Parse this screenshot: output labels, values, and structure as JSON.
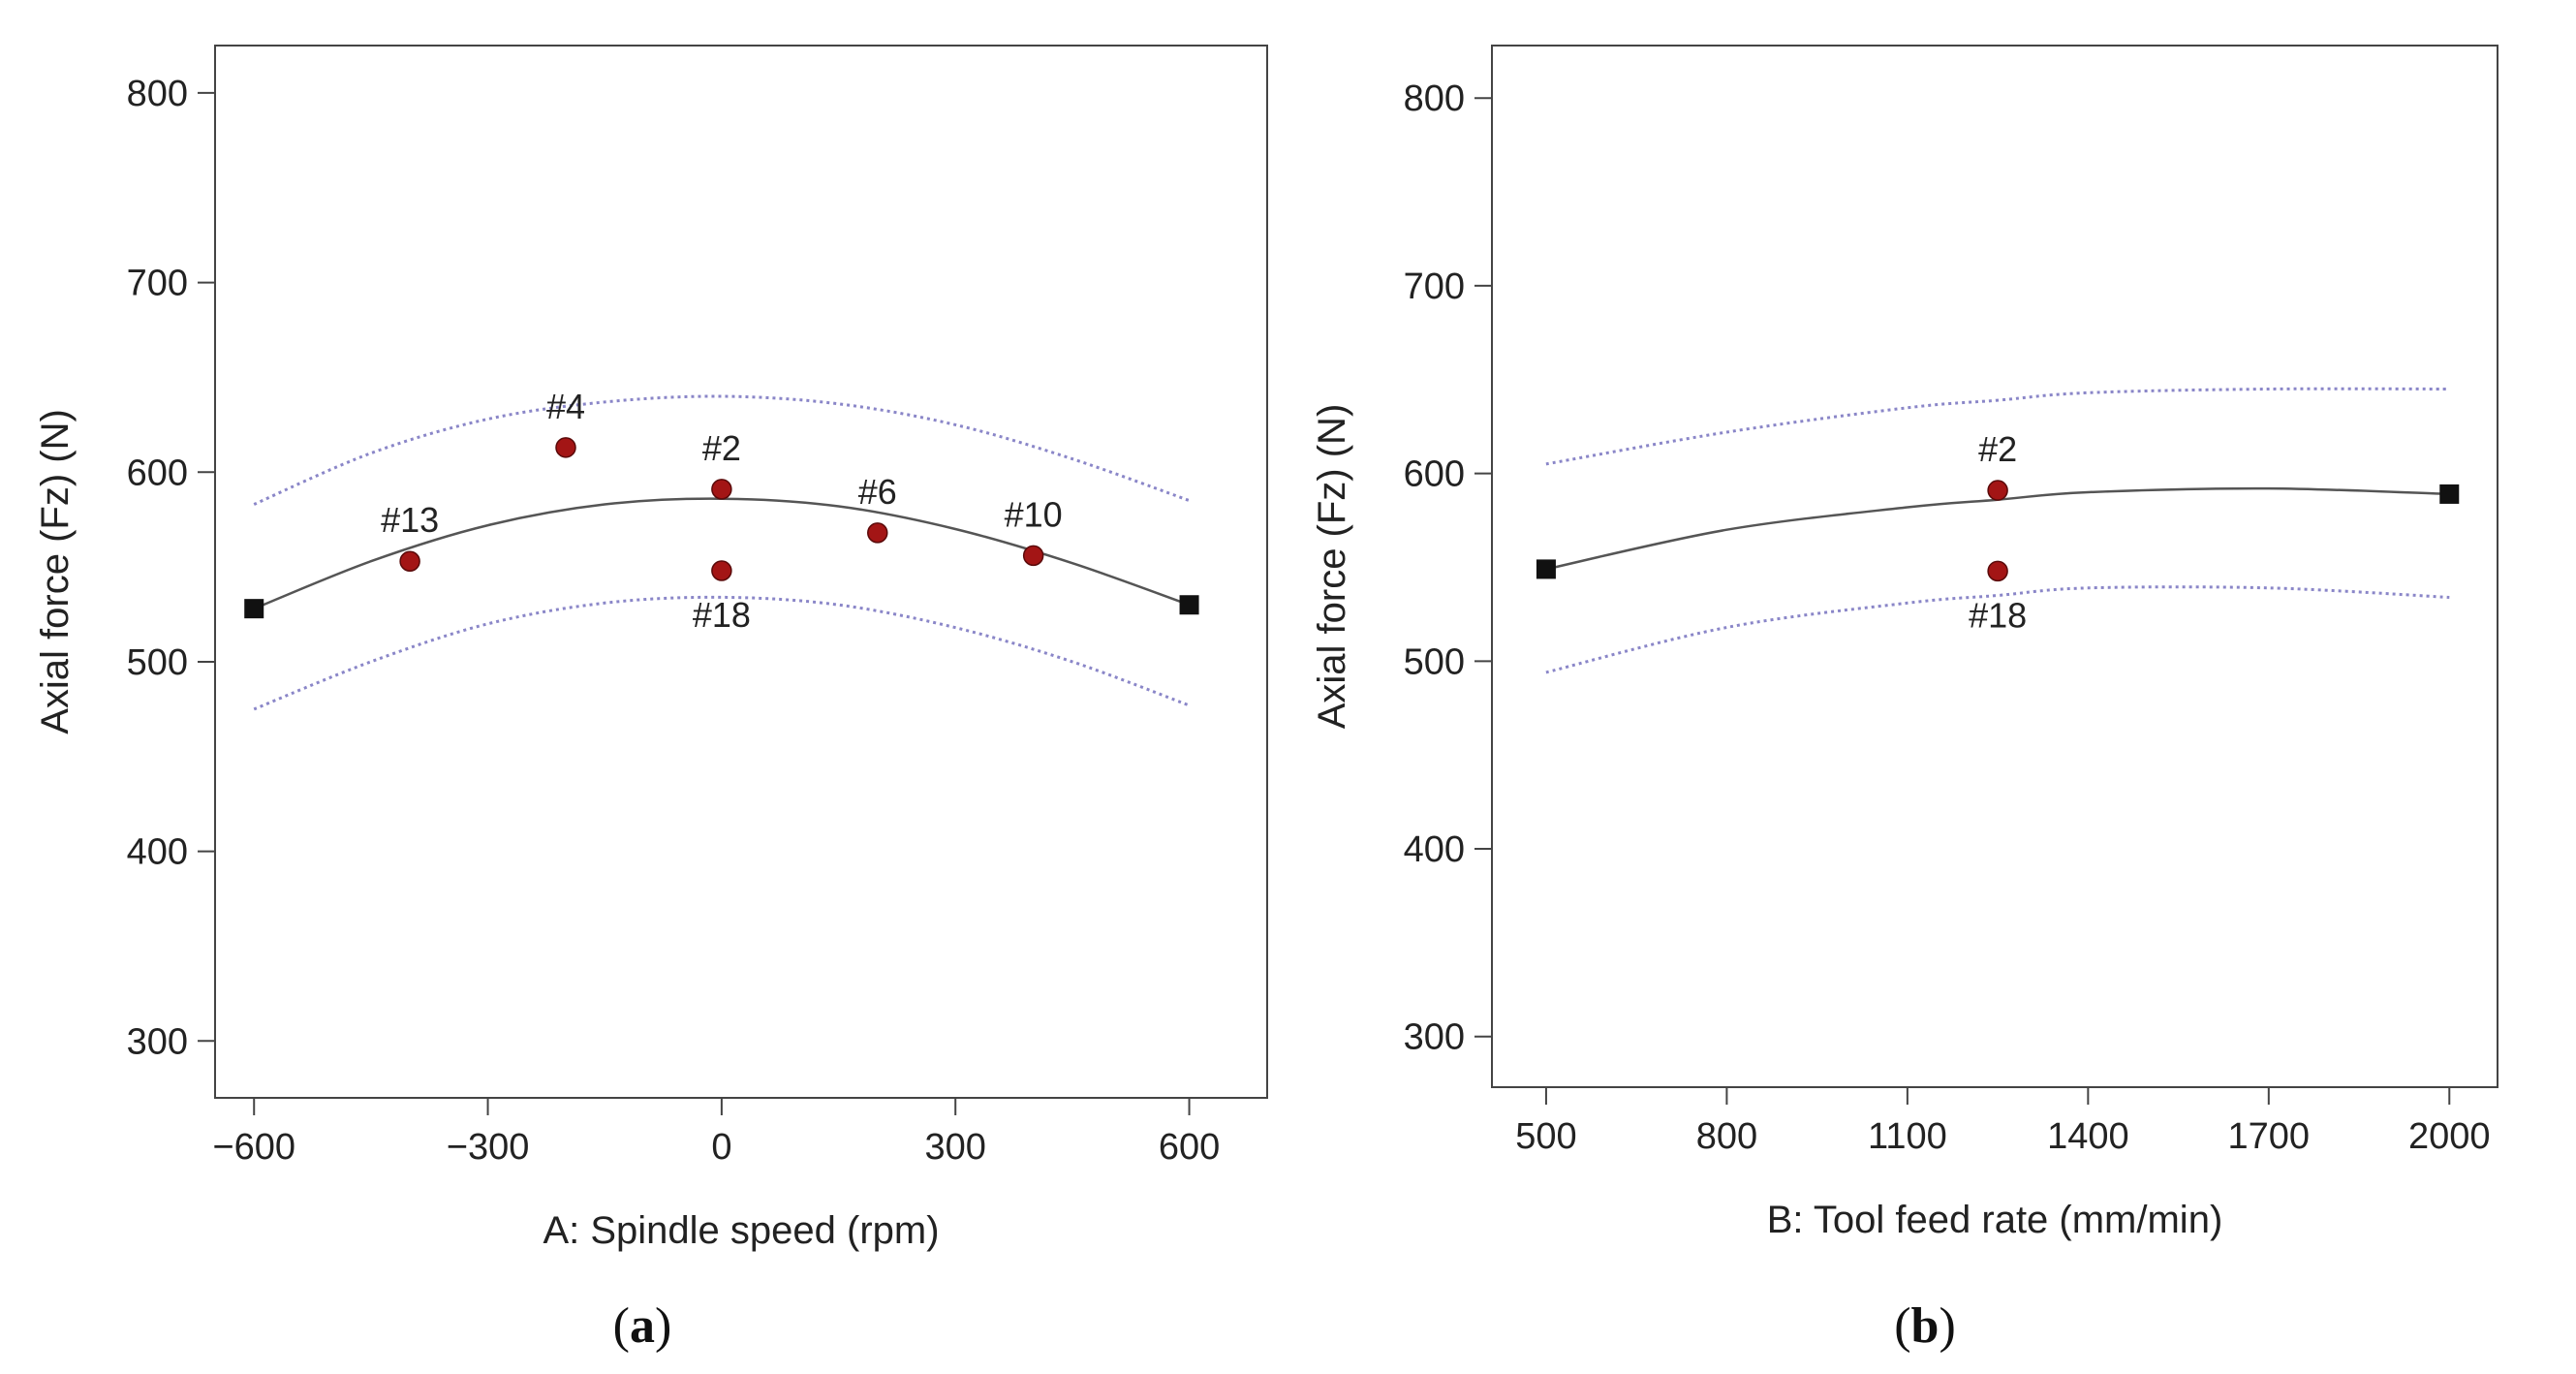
{
  "colors": {
    "frame": "#444444",
    "fit_line": "#555555",
    "ci_line": "#8a86c8",
    "design_point": "#a31515",
    "end_marker": "#111111"
  },
  "chart_data": [
    {
      "type": "line",
      "panel_label": "(a)",
      "panel_letter": "a",
      "xlabel": "A: Spindle speed (rpm)",
      "ylabel": "Axial force (Fz) (N)",
      "xlim": [
        -650,
        700
      ],
      "ylim": [
        270,
        825
      ],
      "xticks": [
        -600,
        -300,
        0,
        300,
        600
      ],
      "xtick_labels": [
        "−600",
        "−300",
        "0",
        "300",
        "600"
      ],
      "yticks": [
        300,
        400,
        500,
        600,
        700,
        800
      ],
      "ytick_labels": [
        "300",
        "400",
        "500",
        "600",
        "700",
        "800"
      ],
      "fit": {
        "name": "Predicted",
        "x": [
          -600,
          -450,
          -300,
          -150,
          0,
          150,
          300,
          450,
          600
        ],
        "y": [
          528,
          553,
          572,
          583,
          586,
          582,
          570,
          552,
          530
        ]
      },
      "ci_upper": {
        "name": "Upper 95% CI",
        "x": [
          -600,
          -450,
          -300,
          -150,
          0,
          150,
          300,
          450,
          600
        ],
        "y": [
          583,
          610,
          628,
          637,
          640,
          636,
          625,
          607,
          585
        ]
      },
      "ci_lower": {
        "name": "Lower 95% CI",
        "x": [
          -600,
          -450,
          -300,
          -150,
          0,
          150,
          300,
          450,
          600
        ],
        "y": [
          475,
          500,
          520,
          531,
          534,
          530,
          518,
          500,
          477
        ]
      },
      "endpoints": [
        {
          "x": -600,
          "y": 528
        },
        {
          "x": 600,
          "y": 530
        }
      ],
      "points": [
        {
          "label": "#13",
          "x": -400,
          "y": 553
        },
        {
          "label": "#4",
          "x": -200,
          "y": 613
        },
        {
          "label": "#2",
          "x": 0,
          "y": 591
        },
        {
          "label": "#18",
          "x": 0,
          "y": 548
        },
        {
          "label": "#6",
          "x": 200,
          "y": 568
        },
        {
          "label": "#10",
          "x": 400,
          "y": 556
        }
      ]
    },
    {
      "type": "line",
      "panel_label": "(b)",
      "panel_letter": "b",
      "xlabel": "B: Tool feed rate (mm/min)",
      "ylabel": "Axial force (Fz) (N)",
      "xlim": [
        410,
        2080
      ],
      "ylim": [
        273,
        828
      ],
      "xticks": [
        500,
        800,
        1100,
        1400,
        1700,
        2000
      ],
      "xtick_labels": [
        "500",
        "800",
        "1100",
        "1400",
        "1700",
        "2000"
      ],
      "yticks": [
        300,
        400,
        500,
        600,
        700,
        800
      ],
      "ytick_labels": [
        "300",
        "400",
        "500",
        "600",
        "700",
        "800"
      ],
      "fit": {
        "name": "Predicted",
        "x": [
          500,
          800,
          1100,
          1250,
          1400,
          1700,
          2000
        ],
        "y": [
          549,
          570,
          582,
          586,
          590,
          592,
          589
        ]
      },
      "ci_upper": {
        "name": "Upper 95% CI",
        "x": [
          500,
          800,
          1100,
          1250,
          1400,
          1700,
          2000
        ],
        "y": [
          605,
          622,
          635,
          639,
          643,
          645,
          645
        ]
      },
      "ci_lower": {
        "name": "Lower 95% CI",
        "x": [
          500,
          800,
          1100,
          1250,
          1400,
          1700,
          2000
        ],
        "y": [
          494,
          518,
          531,
          535,
          539,
          539,
          534
        ]
      },
      "endpoints": [
        {
          "x": 500,
          "y": 549
        },
        {
          "x": 2000,
          "y": 589
        }
      ],
      "points": [
        {
          "label": "#2",
          "x": 1250,
          "y": 591
        },
        {
          "label": "#18",
          "x": 1250,
          "y": 548
        }
      ]
    }
  ]
}
